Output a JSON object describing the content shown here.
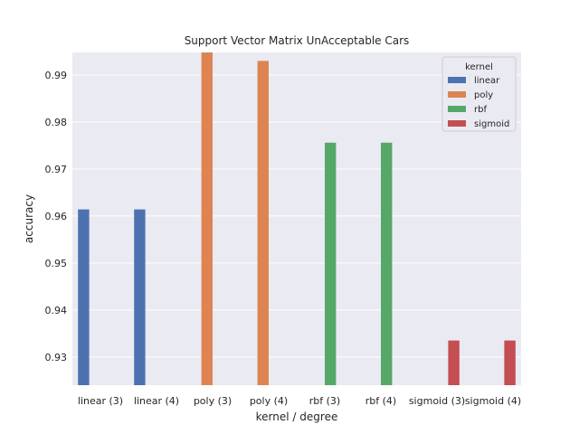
{
  "chart_data": {
    "type": "bar",
    "title": "Support Vector Matrix UnAcceptable Cars",
    "xlabel": "kernel / degree",
    "ylabel": "accuracy",
    "ylim": [
      0.924,
      0.9948
    ],
    "yticks": [
      "0.93",
      "0.94",
      "0.95",
      "0.96",
      "0.97",
      "0.98",
      "0.99"
    ],
    "ytick_values": [
      0.93,
      0.94,
      0.95,
      0.96,
      0.97,
      0.98,
      0.99
    ],
    "categories": [
      "linear (3)",
      "linear (4)",
      "poly (3)",
      "poly (4)",
      "rbf (3)",
      "rbf (4)",
      "sigmoid (3)",
      "sigmoid (4)"
    ],
    "hue_order": [
      "linear",
      "poly",
      "rbf",
      "sigmoid"
    ],
    "series": [
      {
        "name": "linear",
        "values": [
          0.9614,
          0.9614,
          null,
          null,
          null,
          null,
          null,
          null
        ]
      },
      {
        "name": "poly",
        "values": [
          null,
          null,
          0.9948,
          0.993,
          null,
          null,
          null,
          null
        ]
      },
      {
        "name": "rbf",
        "values": [
          null,
          null,
          null,
          null,
          0.9756,
          0.9756,
          null,
          null
        ]
      },
      {
        "name": "sigmoid",
        "values": [
          null,
          null,
          null,
          null,
          null,
          null,
          0.9335,
          0.9335
        ]
      }
    ],
    "legend": {
      "title": "kernel",
      "position": "top-right"
    },
    "grid": true,
    "colors": {
      "linear": "#4c72b0",
      "poly": "#dd8452",
      "rbf": "#55a868",
      "sigmoid": "#c44e52",
      "background": "#eaeaf2",
      "grid": "#ffffff"
    }
  }
}
